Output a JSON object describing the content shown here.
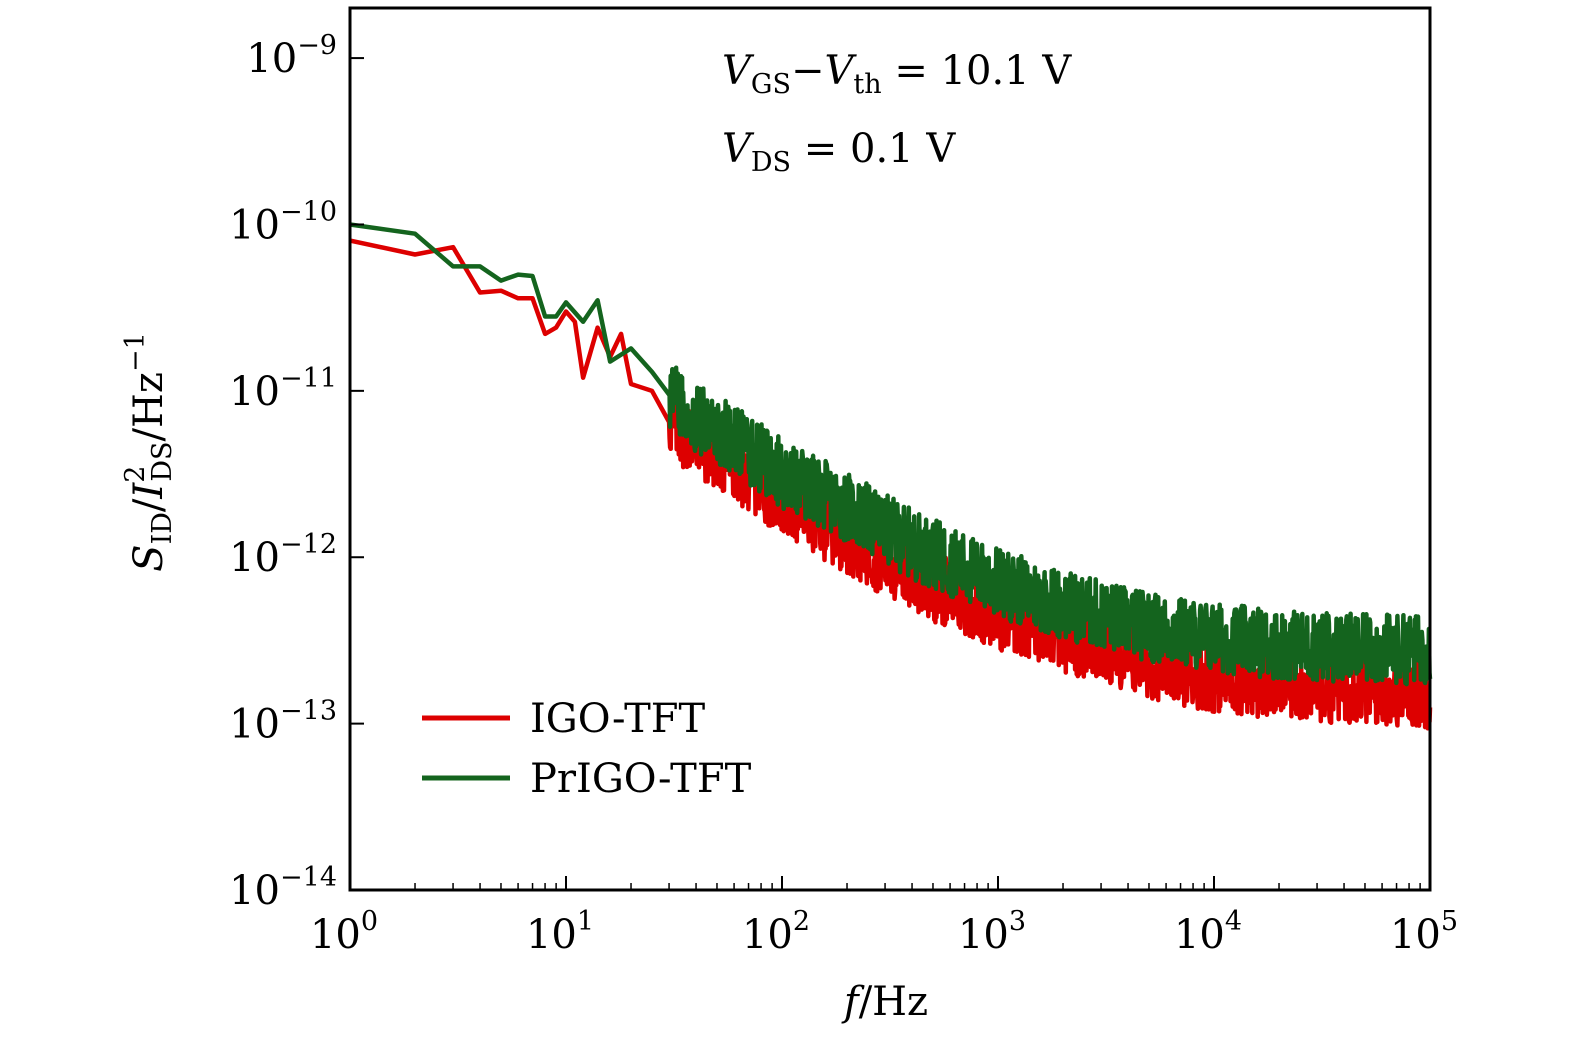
{
  "chart_data": {
    "type": "line",
    "x_scale": "log",
    "y_scale": "log",
    "xlim": [
      1,
      100000
    ],
    "ylim": [
      1e-14,
      2e-09
    ],
    "x_ticks": [
      {
        "base": "10",
        "exp": "0",
        "value": 1
      },
      {
        "base": "10",
        "exp": "1",
        "value": 10
      },
      {
        "base": "10",
        "exp": "2",
        "value": 100
      },
      {
        "base": "10",
        "exp": "3",
        "value": 1000
      },
      {
        "base": "10",
        "exp": "4",
        "value": 10000
      },
      {
        "base": "10",
        "exp": "5",
        "value": 100000
      }
    ],
    "y_ticks": [
      {
        "base": "10",
        "exp": "−9",
        "value": 1e-09
      },
      {
        "base": "10",
        "exp": "−10",
        "value": 1e-10
      },
      {
        "base": "10",
        "exp": "−11",
        "value": 1e-11
      },
      {
        "base": "10",
        "exp": "−12",
        "value": 1e-12
      },
      {
        "base": "10",
        "exp": "−13",
        "value": 1e-13
      },
      {
        "base": "10",
        "exp": "−14",
        "value": 1e-14
      }
    ],
    "xlabel": {
      "var": "f",
      "unit": "/Hz"
    },
    "ylabel": {
      "s": "S",
      "s_sub": "ID",
      "slash": "/",
      "i": "I",
      "i_sup": "2",
      "i_sub": "DS",
      "unit": "/Hz",
      "unit_sup": "−1"
    },
    "annotations": [
      {
        "v1": "V",
        "v1_sub": "GS",
        "minus": "−",
        "v2": "V",
        "v2_sub": "th",
        "rest": " = 10.1 V"
      },
      {
        "v1": "V",
        "v1_sub": "DS",
        "rest": " = 0.1 V"
      }
    ],
    "legend_position": "lower-left",
    "grid": false,
    "series": [
      {
        "name": "IGO-TFT",
        "color": "#dd0000",
        "points": [
          [
            1,
            8e-11
          ],
          [
            2,
            6.6e-11
          ],
          [
            3,
            7.3e-11
          ],
          [
            4,
            3.9e-11
          ],
          [
            5,
            4e-11
          ],
          [
            6,
            3.6e-11
          ],
          [
            7,
            3.6e-11
          ],
          [
            8,
            2.2e-11
          ],
          [
            9,
            2.4e-11
          ],
          [
            10,
            3e-11
          ],
          [
            11,
            2.6e-11
          ],
          [
            12,
            1.2e-11
          ],
          [
            14,
            2.4e-11
          ],
          [
            16,
            1.6e-11
          ],
          [
            18,
            2.2e-11
          ],
          [
            20,
            1.1e-11
          ],
          [
            25,
            1e-11
          ],
          [
            30,
            6.5e-12
          ],
          [
            40,
            4.8e-12
          ],
          [
            60,
            3.5e-12
          ],
          [
            100,
            2.2e-12
          ],
          [
            200,
            1.3e-12
          ],
          [
            400,
            7.5e-13
          ],
          [
            1000,
            4.5e-13
          ],
          [
            2000,
            3.3e-13
          ],
          [
            5000,
            2.3e-13
          ],
          [
            10000,
            1.9e-13
          ],
          [
            20000,
            1.7e-13
          ],
          [
            50000,
            1.6e-13
          ],
          [
            100000,
            1.5e-13
          ]
        ]
      },
      {
        "name": "PrIGO-TFT",
        "color": "#14641e",
        "points": [
          [
            1,
            1e-10
          ],
          [
            2,
            8.8e-11
          ],
          [
            3,
            5.6e-11
          ],
          [
            4,
            5.6e-11
          ],
          [
            5,
            4.6e-11
          ],
          [
            6,
            5e-11
          ],
          [
            7,
            4.9e-11
          ],
          [
            8,
            2.8e-11
          ],
          [
            9,
            2.8e-11
          ],
          [
            10,
            3.4e-11
          ],
          [
            12,
            2.6e-11
          ],
          [
            14,
            3.5e-11
          ],
          [
            16,
            1.5e-11
          ],
          [
            20,
            1.8e-11
          ],
          [
            25,
            1.3e-11
          ],
          [
            30,
            9.5e-12
          ],
          [
            40,
            7e-12
          ],
          [
            60,
            5e-12
          ],
          [
            100,
            3.2e-12
          ],
          [
            200,
            2e-12
          ],
          [
            400,
            1.2e-12
          ],
          [
            1000,
            7e-13
          ],
          [
            2000,
            5.2e-13
          ],
          [
            5000,
            3.8e-13
          ],
          [
            10000,
            3.3e-13
          ],
          [
            20000,
            3e-13
          ],
          [
            50000,
            2.8e-13
          ],
          [
            100000,
            2.8e-13
          ]
        ]
      }
    ]
  }
}
